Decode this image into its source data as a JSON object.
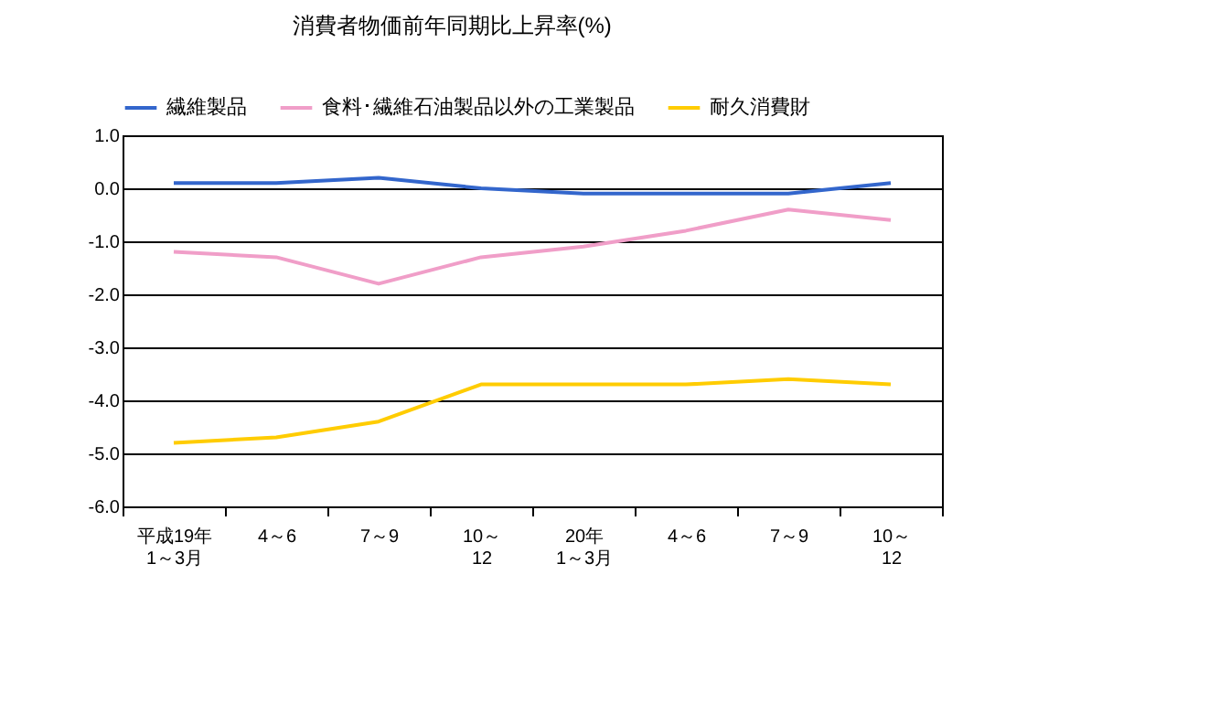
{
  "chart_data": {
    "type": "line",
    "title": "消費者物価前年同期比上昇率(%)",
    "categories": [
      "平成19年\n1～3月",
      "4～6",
      "7～9",
      "10～\n12",
      "20年\n1～3月",
      "4～6",
      "7～9",
      "10～\n12"
    ],
    "series": [
      {
        "name": "繊維製品",
        "color": "#3366cc",
        "values": [
          0.1,
          0.1,
          0.2,
          0.0,
          -0.1,
          -0.1,
          -0.1,
          0.1
        ]
      },
      {
        "name": "食料･繊維石油製品以外の工業製品",
        "color": "#f09ec8",
        "values": [
          -1.2,
          -1.3,
          -1.8,
          -1.3,
          -1.1,
          -0.8,
          -0.4,
          -0.6
        ]
      },
      {
        "name": "耐久消費財",
        "color": "#ffcc00",
        "values": [
          -4.8,
          -4.7,
          -4.4,
          -3.7,
          -3.7,
          -3.7,
          -3.6,
          -3.7
        ]
      }
    ],
    "ylim": [
      -6,
      1
    ],
    "yticks": [
      {
        "value": 1,
        "label": "1.0"
      },
      {
        "value": 0,
        "label": "0.0"
      },
      {
        "value": -1,
        "label": "-1.0"
      },
      {
        "value": -2,
        "label": "-2.0"
      },
      {
        "value": -3,
        "label": "-3.0"
      },
      {
        "value": -4,
        "label": "-4.0"
      },
      {
        "value": -5,
        "label": "-5.0"
      },
      {
        "value": -6,
        "label": "-6.0"
      }
    ],
    "grid": "y",
    "legend": "top",
    "marker": "none",
    "line_style": "solid"
  }
}
